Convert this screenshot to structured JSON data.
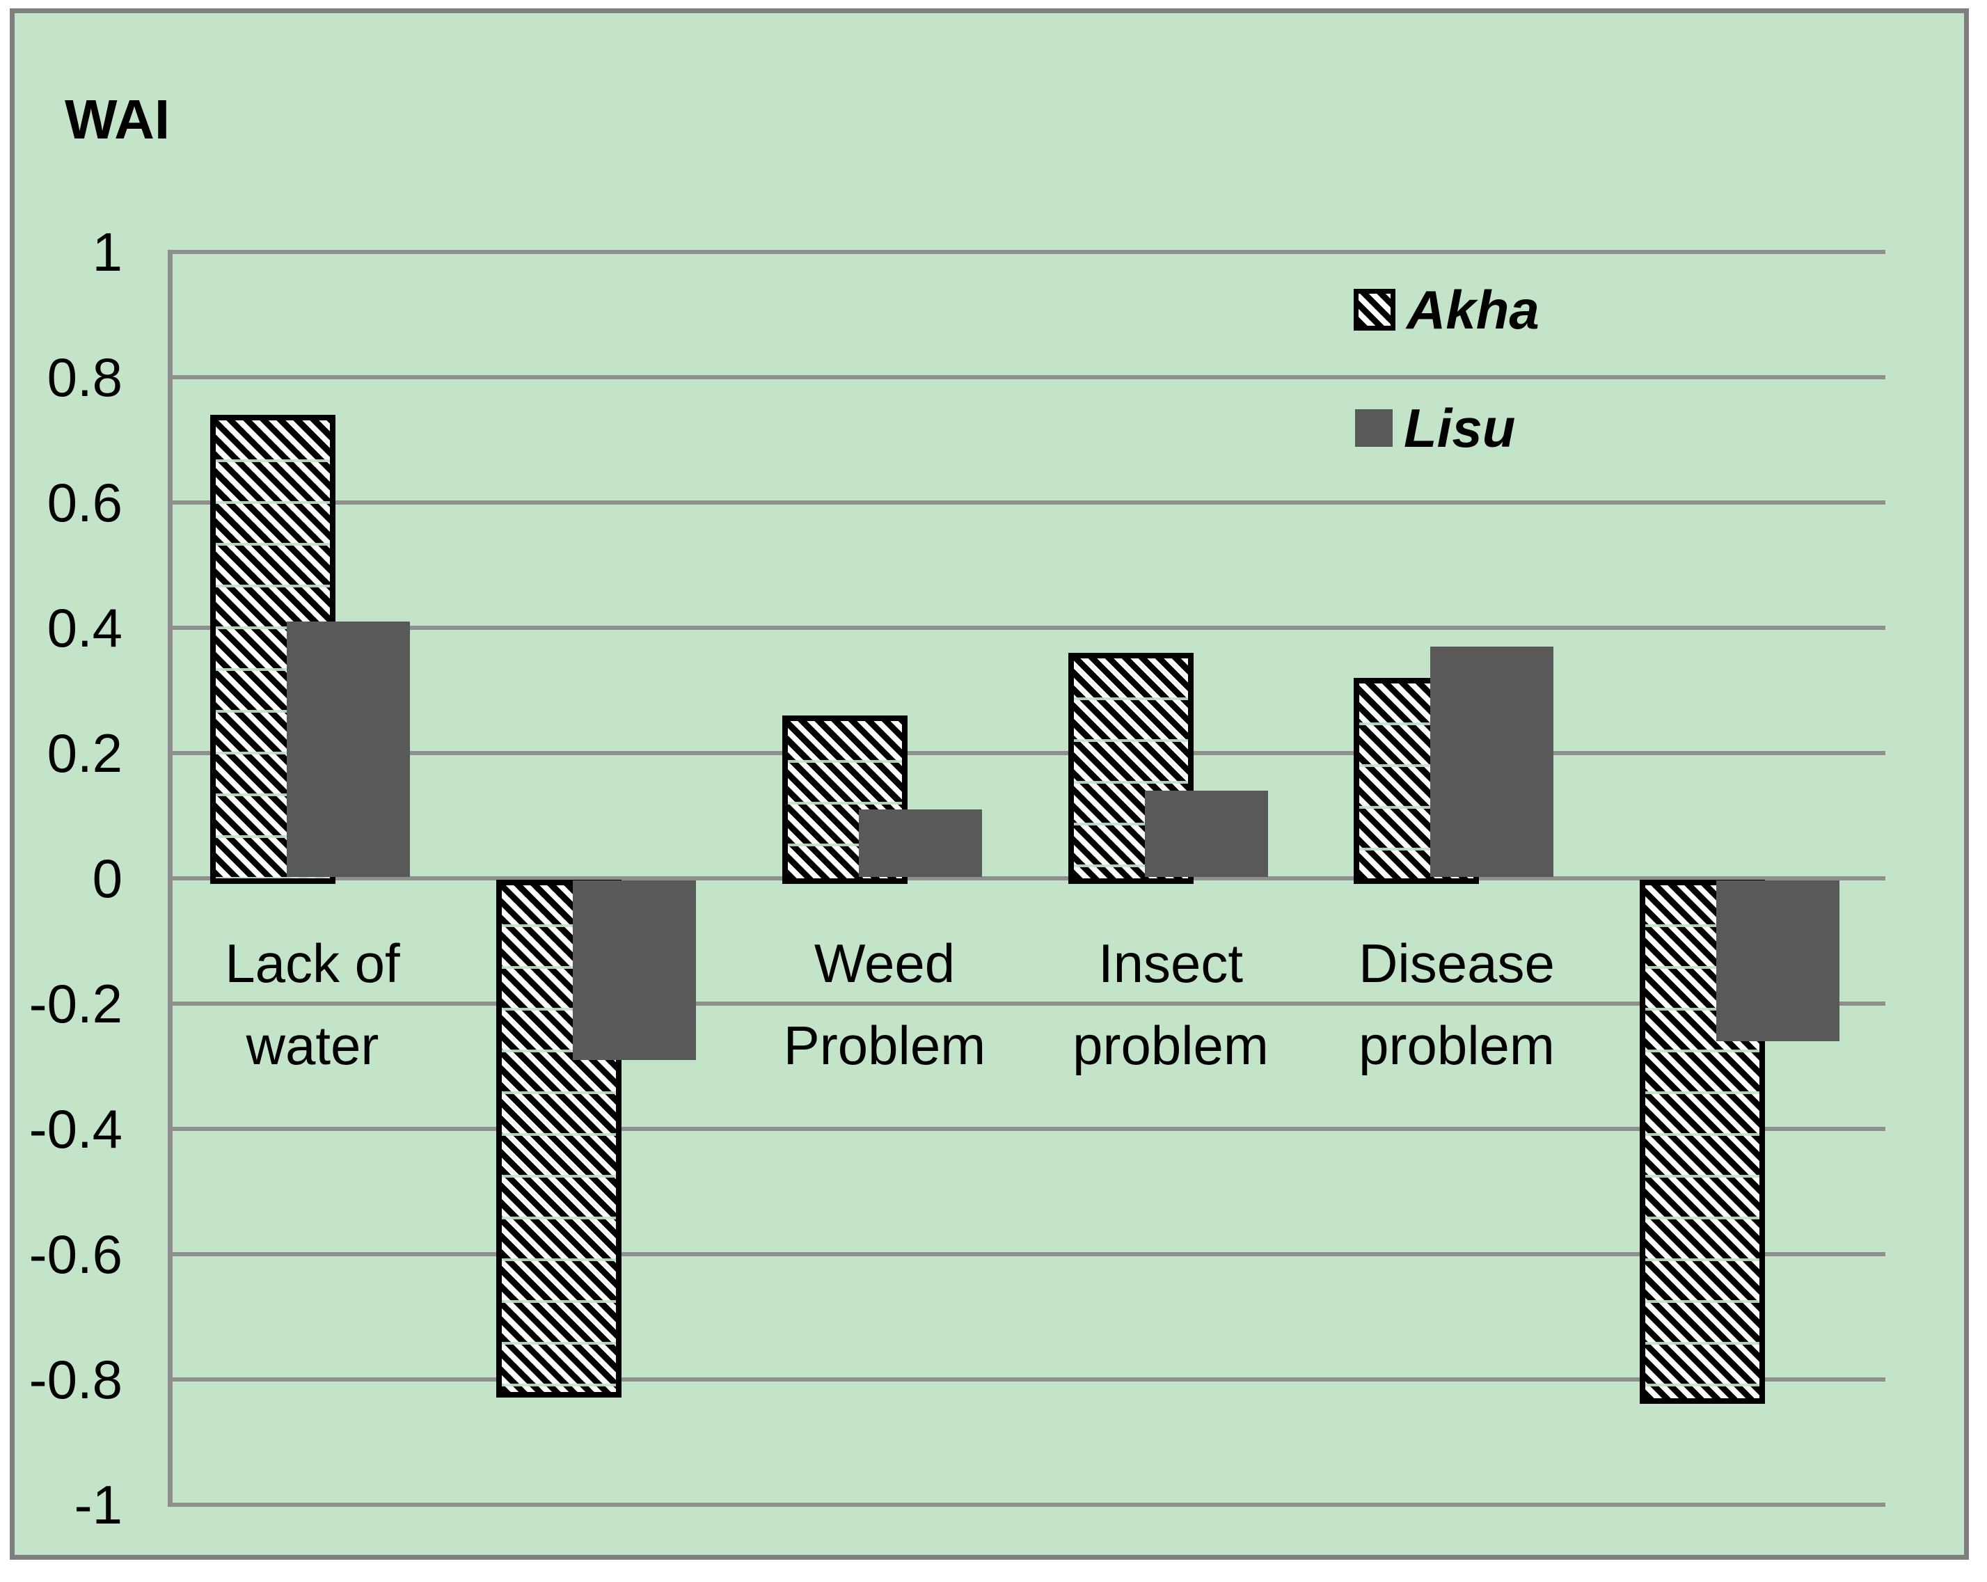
{
  "figure": {
    "kind": "excel-style clustered overlapping bar chart screenshot"
  },
  "chart_data": {
    "type": "bar",
    "title": "",
    "ylabel": "WAI",
    "xlabel": "",
    "ylim": [
      -1,
      1
    ],
    "ytick_labels": [
      "1",
      "0.8",
      "0.6",
      "0.4",
      "0.2",
      "0",
      "-0.2",
      "-0.4",
      "-0.6",
      "-0.8",
      "-1"
    ],
    "grid": true,
    "gridline_step": 0.2,
    "legend_position": "top-right",
    "categories": [
      "Lack of water",
      "",
      "Weed Problem",
      "Insect problem",
      "Disease problem",
      ""
    ],
    "category_lines": [
      [
        "Lack of",
        "water"
      ],
      [],
      [
        "Weed",
        "Problem"
      ],
      [
        "Insect",
        "problem"
      ],
      [
        "Disease",
        "problem"
      ],
      []
    ],
    "series": [
      {
        "name": "Akha",
        "style": "hatch",
        "values": [
          0.74,
          -0.82,
          0.26,
          0.36,
          0.32,
          -0.83
        ]
      },
      {
        "name": "Lisu",
        "style": "solid",
        "values": [
          0.41,
          -0.29,
          0.11,
          0.14,
          0.37,
          -0.26
        ]
      }
    ]
  },
  "legend": {
    "items": [
      {
        "label": "Akha",
        "swatch": "hatch-icon"
      },
      {
        "label": "Lisu",
        "swatch": "solid-icon"
      }
    ]
  },
  "colors": {
    "page": "#ffffff",
    "background": "#c4e4ca",
    "figure_border": "#7f7f7f",
    "gridline": "#8f8f8f",
    "axis_line": "#8f8f8f",
    "lisu_fill": "#595959",
    "hatch_dark": "#000000",
    "hatch_light": "#ffffff",
    "text": "#000000"
  }
}
